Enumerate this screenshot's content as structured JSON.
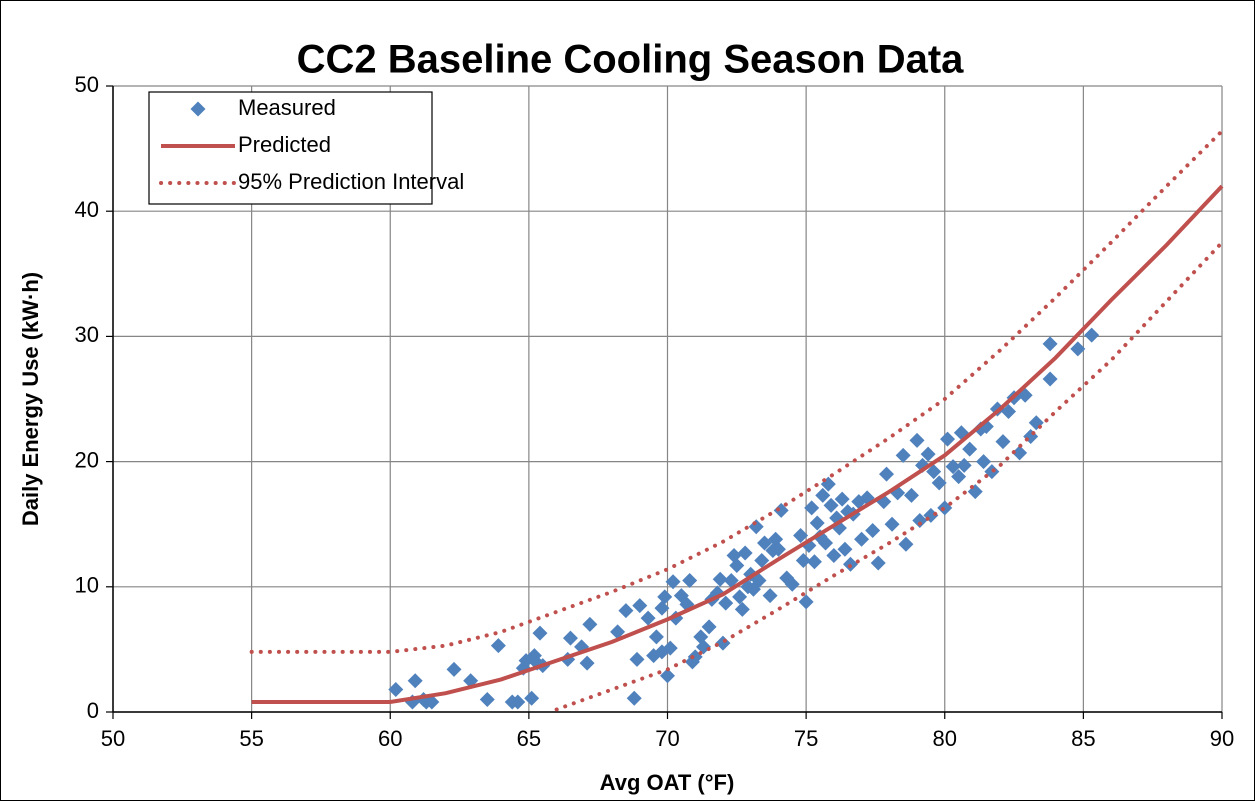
{
  "chart_data": {
    "type": "scatter",
    "title": "CC2 Baseline Cooling Season Data",
    "xlabel": "Avg OAT (°F)",
    "ylabel": "Daily Energy Use (kW·h)",
    "xlim": [
      50,
      90
    ],
    "xticks": [
      50,
      55,
      60,
      65,
      70,
      75,
      80,
      85,
      90
    ],
    "ylim": [
      0,
      50
    ],
    "yticks": [
      0,
      10,
      20,
      30,
      40,
      50
    ],
    "grid": true,
    "legend": "top-left",
    "series": [
      {
        "name": "Measured",
        "color": "#4f81bd",
        "style": "diamond",
        "x": [
          60.2,
          60.8,
          60.9,
          61.2,
          61.3,
          61.5,
          62.3,
          62.9,
          63.5,
          63.9,
          64.4,
          64.6,
          64.8,
          64.9,
          65.1,
          65.2,
          65.3,
          65.4,
          65.5,
          66.4,
          66.5,
          66.9,
          67.1,
          67.2,
          68.2,
          68.5,
          68.8,
          68.9,
          69.0,
          69.3,
          69.5,
          69.6,
          69.8,
          69.8,
          69.9,
          70.0,
          70.1,
          70.2,
          70.3,
          70.5,
          70.7,
          70.8,
          70.9,
          71.0,
          71.2,
          71.3,
          71.5,
          71.6,
          71.8,
          71.9,
          72.0,
          72.1,
          72.3,
          72.4,
          72.5,
          72.6,
          72.7,
          72.8,
          72.9,
          73.0,
          73.1,
          73.2,
          73.3,
          73.4,
          73.5,
          73.7,
          73.8,
          73.9,
          74.0,
          74.1,
          74.3,
          74.5,
          74.8,
          74.9,
          75.0,
          75.1,
          75.2,
          75.3,
          75.4,
          75.5,
          75.6,
          75.7,
          75.8,
          75.9,
          76.0,
          76.1,
          76.2,
          76.3,
          76.4,
          76.5,
          76.6,
          76.7,
          76.9,
          77.0,
          77.2,
          77.4,
          77.6,
          77.8,
          77.9,
          78.1,
          78.3,
          78.5,
          78.6,
          78.8,
          79.0,
          79.1,
          79.2,
          79.4,
          79.5,
          79.6,
          79.8,
          80.0,
          80.1,
          80.3,
          80.5,
          80.6,
          80.7,
          80.9,
          81.1,
          81.3,
          81.4,
          81.5,
          81.7,
          81.9,
          82.1,
          82.3,
          82.5,
          82.7,
          82.9,
          83.1,
          83.3,
          83.8,
          83.8,
          84.8,
          85.3
        ],
        "values": [
          1.8,
          0.8,
          2.5,
          1.0,
          0.8,
          0.8,
          3.4,
          2.5,
          1.0,
          5.3,
          0.8,
          0.8,
          3.5,
          4.1,
          1.1,
          4.5,
          3.9,
          6.3,
          3.7,
          4.2,
          5.9,
          5.2,
          3.9,
          7.0,
          6.4,
          8.1,
          1.1,
          4.2,
          8.5,
          7.5,
          4.5,
          6.0,
          4.8,
          8.3,
          9.2,
          2.9,
          5.1,
          10.4,
          7.5,
          9.3,
          8.6,
          10.5,
          4.0,
          4.4,
          6.0,
          5.2,
          6.8,
          9.0,
          9.5,
          10.6,
          5.5,
          8.7,
          10.5,
          12.5,
          11.7,
          9.2,
          8.2,
          12.7,
          10.0,
          11.0,
          9.8,
          14.8,
          10.5,
          12.1,
          13.5,
          9.3,
          12.9,
          13.8,
          13.0,
          16.1,
          10.7,
          10.2,
          14.1,
          12.1,
          8.8,
          13.3,
          16.3,
          12.0,
          15.1,
          14.0,
          17.3,
          13.5,
          18.2,
          16.5,
          12.5,
          15.5,
          14.7,
          17.0,
          13.0,
          16.0,
          11.8,
          15.8,
          16.8,
          13.8,
          17.1,
          14.5,
          11.9,
          16.8,
          19.0,
          15.0,
          17.5,
          20.5,
          13.4,
          17.3,
          21.7,
          15.3,
          19.7,
          20.6,
          15.7,
          19.2,
          18.3,
          16.3,
          21.8,
          19.6,
          18.8,
          22.3,
          19.7,
          21.0,
          17.6,
          22.6,
          20.0,
          22.8,
          19.2,
          24.2,
          21.6,
          24.0,
          25.1,
          20.7,
          25.3,
          22.0,
          23.1,
          26.6,
          29.4,
          29.0,
          30.1
        ]
      },
      {
        "name": "Predicted",
        "color": "#c0504d",
        "style": "solid",
        "x": [
          55,
          60,
          62,
          64,
          66,
          68,
          70,
          72,
          74,
          76,
          78,
          80,
          82,
          84,
          86,
          88,
          90
        ],
        "values": [
          0.8,
          0.8,
          1.5,
          2.6,
          4.1,
          5.6,
          7.4,
          9.4,
          12.2,
          14.9,
          17.6,
          20.5,
          24.2,
          28.3,
          32.9,
          37.3,
          42.0
        ]
      },
      {
        "name": "95% Prediction Interval",
        "color": "#c0504d",
        "style": "dotted",
        "x": [
          55,
          60,
          62,
          64,
          66,
          68,
          70,
          72,
          74,
          76,
          78,
          80,
          82,
          84,
          86,
          88,
          90
        ],
        "upper": [
          4.8,
          4.8,
          5.3,
          6.4,
          8.0,
          9.6,
          11.4,
          13.6,
          16.2,
          19.0,
          21.9,
          25.0,
          28.9,
          33.1,
          37.5,
          42.0,
          46.4
        ],
        "lower": [
          null,
          null,
          null,
          null,
          0.2,
          1.8,
          3.4,
          5.6,
          8.2,
          10.9,
          13.5,
          16.3,
          19.7,
          24.0,
          28.1,
          32.8,
          37.5
        ]
      }
    ]
  }
}
